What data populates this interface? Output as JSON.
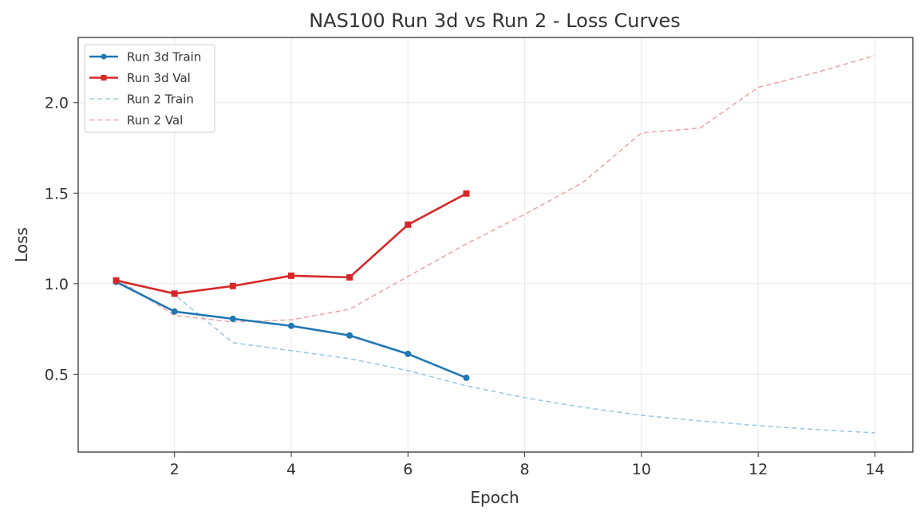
{
  "chart_data": {
    "type": "line",
    "title": "NAS100 Run 3d vs Run 2 - Loss Curves",
    "xlabel": "Epoch",
    "ylabel": "Loss",
    "xlim": [
      0.35,
      14.65
    ],
    "ylim": [
      0.07,
      2.36
    ],
    "xticks": [
      2,
      4,
      6,
      8,
      10,
      12,
      14
    ],
    "yticks": [
      0.5,
      1.0,
      1.5,
      2.0
    ],
    "ytick_labels": [
      "0.5",
      "1.0",
      "1.5",
      "2.0"
    ],
    "grid": true,
    "legend": "top-left",
    "series": [
      {
        "name": "Run 3d Train",
        "color": "#1f77b4",
        "style": "solid",
        "marker": "circle",
        "x": [
          1,
          2,
          3,
          4,
          5,
          6,
          7
        ],
        "y": [
          1.01,
          0.846,
          0.806,
          0.767,
          0.714,
          0.612,
          0.48
        ]
      },
      {
        "name": "Run 3d Val",
        "color": "#d62728",
        "style": "solid",
        "marker": "square",
        "x": [
          1,
          2,
          3,
          4,
          5,
          6,
          7
        ],
        "y": [
          1.018,
          0.945,
          0.987,
          1.044,
          1.035,
          1.326,
          1.498
        ]
      },
      {
        "name": "Run 2 Train",
        "color": "#9ecae1",
        "style": "dashed",
        "marker": "none",
        "x": [
          1,
          2,
          3,
          4,
          5,
          6,
          7,
          8,
          9,
          10,
          11,
          12,
          13,
          14
        ],
        "y": [
          1.02,
          0.94,
          0.674,
          0.63,
          0.586,
          0.52,
          0.436,
          0.37,
          0.317,
          0.273,
          0.242,
          0.216,
          0.194,
          0.176
        ]
      },
      {
        "name": "Run 2 Val",
        "color": "#eea8a8",
        "style": "dashed",
        "marker": "none",
        "x": [
          1,
          2,
          3,
          4,
          5,
          6,
          7,
          8,
          9,
          10,
          11,
          12,
          13,
          14
        ],
        "y": [
          1.03,
          0.824,
          0.789,
          0.8,
          0.859,
          1.04,
          1.22,
          1.383,
          1.56,
          1.833,
          1.859,
          2.084,
          2.167,
          2.26
        ]
      }
    ]
  }
}
